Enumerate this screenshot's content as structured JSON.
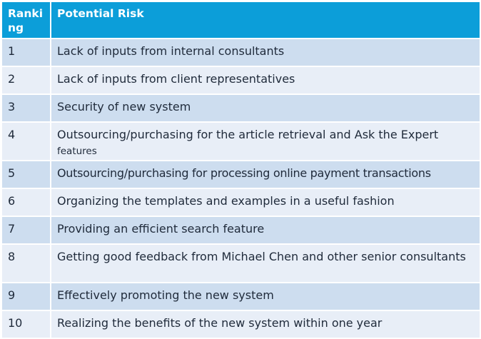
{
  "table": {
    "headers": {
      "ranking": "Ranking",
      "potential_risk": "Potential Risk"
    },
    "rows": [
      {
        "rank": "1",
        "risk": "Lack of inputs from internal consultants"
      },
      {
        "rank": "2",
        "risk": "Lack of inputs from client representatives"
      },
      {
        "rank": "3",
        "risk": "Security of new system"
      },
      {
        "rank": "4",
        "risk": "Outsourcing/purchasing for the article retrieval and Ask the Expert",
        "risk_cont": "features"
      },
      {
        "rank": "5",
        "risk": "Outsourcing/purchasing for processing online payment transactions"
      },
      {
        "rank": "6",
        "risk": "Organizing the templates and examples in a useful fashion"
      },
      {
        "rank": "7",
        "risk": "Providing an efficient search feature"
      },
      {
        "rank": "8",
        "risk": "Getting good feedback from Michael Chen and other senior consultants"
      },
      {
        "rank": "9",
        "risk": "Effectively promoting the new system"
      },
      {
        "rank": "10",
        "risk": "Realizing the benefits of the new system within one year"
      }
    ]
  },
  "colors": {
    "header_bg": "#0c9ed9",
    "row_dark": "#cdddef",
    "row_light": "#e8eef7"
  }
}
